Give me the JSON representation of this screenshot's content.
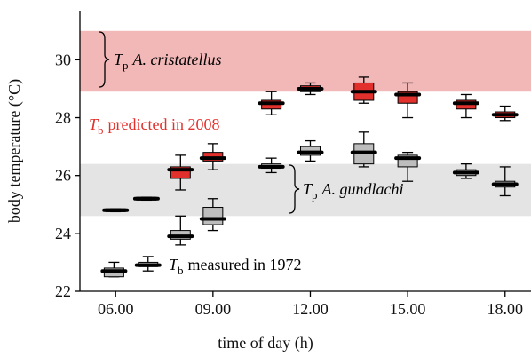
{
  "chart_data": {
    "type": "box",
    "xlabel": "time of day (h)",
    "ylabel": "body temperature (°C)",
    "xlim": [
      4.9,
      18.8
    ],
    "ylim": [
      22,
      31.7
    ],
    "xticks": [
      {
        "value": 6,
        "label": "06.00"
      },
      {
        "value": 9,
        "label": "09.00"
      },
      {
        "value": 12,
        "label": "12.00"
      },
      {
        "value": 15,
        "label": "15.00"
      },
      {
        "value": 18,
        "label": "18.00"
      }
    ],
    "yticks": [
      22,
      24,
      26,
      28,
      30
    ],
    "bands": [
      {
        "range": [
          28.9,
          31.0
        ],
        "color": "#f2b8b8"
      },
      {
        "range": [
          24.6,
          26.4
        ],
        "color": "#e4e4e4"
      }
    ],
    "series": [
      {
        "color": "#e2302c",
        "x": [
          6.0,
          6.95,
          8.0,
          9.0,
          10.8,
          12.0,
          13.65,
          15.0,
          16.8,
          18.0
        ],
        "low": [
          24.75,
          25.15,
          25.5,
          26.2,
          28.1,
          28.8,
          28.5,
          28.0,
          28.0,
          27.9
        ],
        "q1": [
          24.75,
          25.15,
          25.9,
          26.5,
          28.3,
          28.9,
          28.6,
          28.5,
          28.3,
          28.0
        ],
        "median": [
          24.8,
          25.2,
          26.2,
          26.6,
          28.5,
          29.0,
          28.9,
          28.8,
          28.5,
          28.1
        ],
        "q3": [
          24.85,
          25.25,
          26.3,
          26.8,
          28.6,
          29.1,
          29.2,
          28.9,
          28.6,
          28.2
        ],
        "high": [
          24.85,
          25.25,
          26.7,
          27.1,
          28.9,
          29.2,
          29.4,
          29.2,
          28.8,
          28.4
        ]
      },
      {
        "color": "#bdbdbd",
        "x": [
          5.95,
          7.0,
          8.0,
          9.0,
          10.8,
          12.0,
          13.65,
          15.0,
          16.8,
          18.0
        ],
        "low": [
          22.5,
          22.7,
          23.6,
          24.1,
          26.1,
          26.5,
          26.3,
          25.8,
          25.9,
          25.3
        ],
        "q1": [
          22.5,
          22.85,
          23.8,
          24.3,
          26.25,
          26.7,
          26.4,
          26.3,
          26.0,
          25.6
        ],
        "median": [
          22.7,
          22.9,
          23.9,
          24.5,
          26.3,
          26.8,
          26.8,
          26.6,
          26.1,
          25.7
        ],
        "q3": [
          22.8,
          23.0,
          24.1,
          24.9,
          26.4,
          27.0,
          27.1,
          26.7,
          26.2,
          25.8
        ],
        "high": [
          23.0,
          23.2,
          24.6,
          25.2,
          26.6,
          27.2,
          27.5,
          26.8,
          26.4,
          26.3
        ]
      }
    ],
    "annotations": [
      {
        "symbol": "T",
        "subscript": "p",
        "text": "A. cristatellus",
        "color": "#000000"
      },
      {
        "symbol": "T",
        "subscript": "b",
        "text": "predicted in 2008",
        "color": "#e2302c"
      },
      {
        "symbol": "T",
        "subscript": "p",
        "text": "A. gundlachi",
        "color": "#000000"
      },
      {
        "symbol": "T",
        "subscript": "b",
        "text": "measured in 1972",
        "color": "#000000"
      }
    ]
  }
}
